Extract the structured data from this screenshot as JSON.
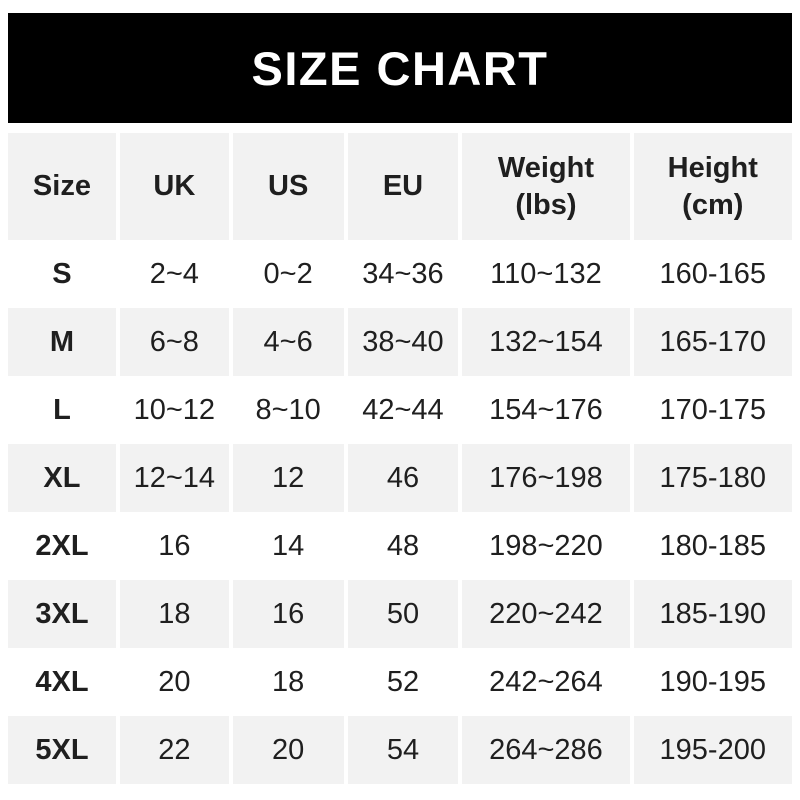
{
  "title": "SIZE CHART",
  "colors": {
    "banner_bg": "#000000",
    "banner_text": "#ffffff",
    "stripe_bg": "#f2f2f2",
    "text": "#1f1f1f",
    "page_bg": "#ffffff"
  },
  "chart_data": {
    "type": "table",
    "title": "SIZE CHART",
    "columns": [
      {
        "label": "Size",
        "sub": ""
      },
      {
        "label": "UK",
        "sub": ""
      },
      {
        "label": "US",
        "sub": ""
      },
      {
        "label": "EU",
        "sub": ""
      },
      {
        "label": "Weight",
        "sub": "(lbs)"
      },
      {
        "label": "Height",
        "sub": "(cm)"
      }
    ],
    "rows": [
      [
        "S",
        "2~4",
        "0~2",
        "34~36",
        "110~132",
        "160-165"
      ],
      [
        "M",
        "6~8",
        "4~6",
        "38~40",
        "132~154",
        "165-170"
      ],
      [
        "L",
        "10~12",
        "8~10",
        "42~44",
        "154~176",
        "170-175"
      ],
      [
        "XL",
        "12~14",
        "12",
        "46",
        "176~198",
        "175-180"
      ],
      [
        "2XL",
        "16",
        "14",
        "48",
        "198~220",
        "180-185"
      ],
      [
        "3XL",
        "18",
        "16",
        "50",
        "220~242",
        "185-190"
      ],
      [
        "4XL",
        "20",
        "18",
        "52",
        "242~264",
        "190-195"
      ],
      [
        "5XL",
        "22",
        "20",
        "54",
        "264~286",
        "195-200"
      ]
    ],
    "layout": {
      "striped_row_indices": "header and odd data rows (M, XL, 3XL, 5XL)",
      "weight_separator": "~",
      "height_separator": "-"
    }
  }
}
